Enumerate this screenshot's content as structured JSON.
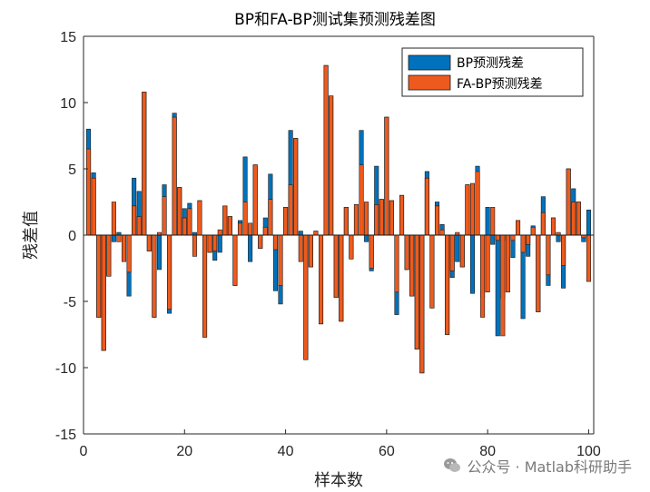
{
  "chart_data": {
    "type": "bar",
    "title": "BP和FA-BP测试集预测残差图",
    "xlabel": "样本数",
    "ylabel": "残差值",
    "xlim": [
      0,
      101
    ],
    "ylim": [
      -15,
      15
    ],
    "xticks": [
      0,
      20,
      40,
      60,
      80,
      100
    ],
    "yticks": [
      -15,
      -10,
      -5,
      0,
      5,
      10,
      15
    ],
    "x": [
      1,
      2,
      3,
      4,
      5,
      6,
      7,
      8,
      9,
      10,
      11,
      12,
      13,
      14,
      15,
      16,
      17,
      18,
      19,
      20,
      21,
      22,
      23,
      24,
      25,
      26,
      27,
      28,
      29,
      30,
      31,
      32,
      33,
      34,
      35,
      36,
      37,
      38,
      39,
      40,
      41,
      42,
      43,
      44,
      45,
      46,
      47,
      48,
      49,
      50,
      51,
      52,
      53,
      54,
      55,
      56,
      57,
      58,
      59,
      60,
      61,
      62,
      63,
      64,
      65,
      66,
      67,
      68,
      69,
      70,
      71,
      72,
      73,
      74,
      75,
      76,
      77,
      78,
      79,
      80,
      81,
      82,
      83,
      84,
      85,
      86,
      87,
      88,
      89,
      90,
      91,
      92,
      93,
      94,
      95,
      96,
      97,
      98,
      99,
      100
    ],
    "series": [
      {
        "name": "BP预测残差",
        "color": "#0072BD",
        "values": [
          8.0,
          4.7,
          -6.2,
          -8.7,
          -3.1,
          -0.5,
          0.2,
          -2.0,
          -4.6,
          4.3,
          3.3,
          10.8,
          -1.2,
          -6.2,
          -2.6,
          3.8,
          -5.9,
          9.2,
          3.6,
          2.0,
          2.4,
          0.2,
          2.6,
          -7.7,
          -1.3,
          -1.9,
          -1.3,
          2.2,
          1.4,
          -3.8,
          1.1,
          5.9,
          -2.0,
          5.3,
          -1.0,
          1.3,
          4.6,
          -4.2,
          -5.2,
          2.1,
          7.9,
          7.3,
          0.3,
          -9.4,
          -2.4,
          0.3,
          -6.7,
          12.8,
          10.5,
          -4.7,
          -6.5,
          2.1,
          -1.8,
          2.3,
          7.9,
          -0.5,
          -2.7,
          5.2,
          2.7,
          8.9,
          2.6,
          -6.0,
          3.0,
          -2.6,
          -4.6,
          -8.6,
          -10.4,
          4.8,
          -5.5,
          2.5,
          0.8,
          -7.5,
          -3.2,
          -2.0,
          -2.4,
          3.8,
          -4.4,
          5.2,
          -4.7,
          2.1,
          -0.7,
          -7.6,
          -4.8,
          -0.4,
          -1.7,
          1.1,
          -6.3,
          -1.6,
          0.7,
          -5.8,
          2.9,
          -3.8,
          1.3,
          -0.5,
          -4.0,
          5.0,
          3.5,
          2.5,
          -0.5,
          1.9
        ],
        "draw_order": 1
      },
      {
        "name": "FA-BP预测残差",
        "color": "#EE5A1D",
        "values": [
          6.5,
          4.3,
          -6.2,
          -8.7,
          -3.1,
          2.5,
          -0.5,
          -2.0,
          -2.8,
          2.2,
          1.4,
          10.8,
          -1.2,
          -6.2,
          0.2,
          2.9,
          -5.6,
          8.9,
          3.6,
          1.3,
          2.0,
          -1.6,
          2.6,
          -7.7,
          -1.3,
          -1.2,
          0.4,
          2.2,
          1.4,
          -3.8,
          0.9,
          2.5,
          0.9,
          5.3,
          -1.0,
          0.6,
          2.7,
          -1.1,
          -3.8,
          2.1,
          3.8,
          7.3,
          -2.0,
          -9.4,
          -2.4,
          0.3,
          -6.7,
          12.8,
          10.5,
          -4.7,
          -6.5,
          2.1,
          -1.8,
          2.3,
          5.3,
          2.5,
          -2.5,
          2.3,
          2.7,
          8.9,
          2.6,
          -4.3,
          3.0,
          -2.6,
          -4.6,
          -8.6,
          -10.4,
          4.3,
          -5.5,
          2.2,
          0.4,
          -7.5,
          -2.7,
          0.2,
          -2.4,
          3.8,
          3.9,
          4.8,
          -6.2,
          -4.3,
          2.1,
          -0.4,
          -7.6,
          -4.3,
          -0.4,
          1.1,
          -1.3,
          -0.7,
          0.6,
          -5.8,
          1.7,
          -3.0,
          1.3,
          0.2,
          -2.3,
          5.0,
          2.5,
          2.5,
          -0.2,
          -3.5
        ],
        "draw_order": 2
      }
    ],
    "legend": {
      "position": "top-right",
      "entries": [
        "BP预测残差",
        "FA-BP预测残差"
      ]
    },
    "grid": false
  },
  "watermark": {
    "text": "公众号 · Matlab科研助手",
    "icon": "wechat-icon"
  }
}
